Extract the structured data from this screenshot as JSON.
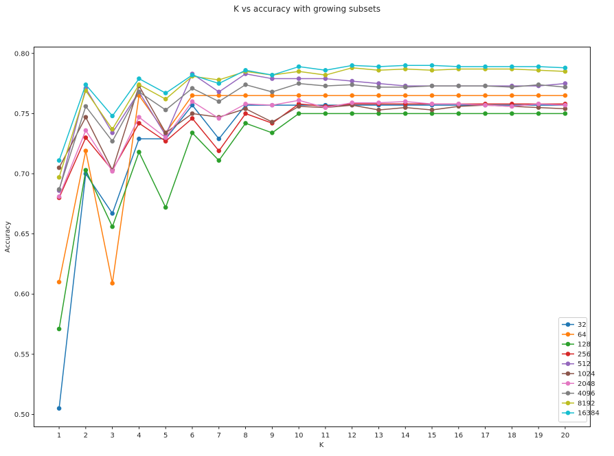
{
  "chart_data": {
    "type": "line",
    "title": "K vs accuracy with growing subsets",
    "xlabel": "K",
    "ylabel": "Accuracy",
    "x": [
      1,
      2,
      3,
      4,
      5,
      6,
      7,
      8,
      9,
      10,
      11,
      12,
      13,
      14,
      15,
      16,
      17,
      18,
      19,
      20
    ],
    "xticks": [
      "1",
      "2",
      "3",
      "4",
      "5",
      "6",
      "7",
      "8",
      "9",
      "10",
      "11",
      "12",
      "13",
      "14",
      "15",
      "16",
      "17",
      "18",
      "19",
      "20"
    ],
    "ylim": [
      0.49,
      0.805
    ],
    "yticks": [
      0.5,
      0.55,
      0.6,
      0.65,
      0.7,
      0.75,
      0.8
    ],
    "ytick_labels": [
      "0.50",
      "0.55",
      "0.60",
      "0.65",
      "0.70",
      "0.75",
      "0.80"
    ],
    "grid": false,
    "legend_position": "lower-right",
    "series": [
      {
        "name": "32",
        "color": "#1f77b4",
        "values": [
          0.505,
          0.7,
          0.667,
          0.729,
          0.729,
          0.757,
          0.729,
          0.757,
          0.757,
          0.757,
          0.757,
          0.757,
          0.757,
          0.757,
          0.757,
          0.757,
          0.757,
          0.757,
          0.757,
          0.757
        ]
      },
      {
        "name": "64",
        "color": "#ff7f0e",
        "values": [
          0.61,
          0.719,
          0.609,
          0.765,
          0.734,
          0.765,
          0.765,
          0.765,
          0.765,
          0.765,
          0.765,
          0.765,
          0.765,
          0.765,
          0.765,
          0.765,
          0.765,
          0.765,
          0.765,
          0.765
        ]
      },
      {
        "name": "128",
        "color": "#2ca02c",
        "values": [
          0.571,
          0.703,
          0.656,
          0.718,
          0.672,
          0.734,
          0.711,
          0.742,
          0.734,
          0.75,
          0.75,
          0.75,
          0.75,
          0.75,
          0.75,
          0.75,
          0.75,
          0.75,
          0.75,
          0.75
        ]
      },
      {
        "name": "256",
        "color": "#d62728",
        "values": [
          0.68,
          0.73,
          0.703,
          0.742,
          0.727,
          0.746,
          0.719,
          0.75,
          0.742,
          0.758,
          0.756,
          0.758,
          0.758,
          0.758,
          0.758,
          0.758,
          0.758,
          0.758,
          0.758,
          0.758
        ]
      },
      {
        "name": "512",
        "color": "#9467bd",
        "values": [
          0.686,
          0.771,
          0.734,
          0.768,
          0.732,
          0.783,
          0.768,
          0.783,
          0.779,
          0.779,
          0.779,
          0.777,
          0.775,
          0.773,
          0.773,
          0.773,
          0.773,
          0.773,
          0.773,
          0.775
        ]
      },
      {
        "name": "1024",
        "color": "#8c564b",
        "values": [
          0.705,
          0.747,
          0.703,
          0.773,
          0.734,
          0.75,
          0.747,
          0.754,
          0.743,
          0.756,
          0.755,
          0.757,
          0.753,
          0.755,
          0.753,
          0.756,
          0.757,
          0.756,
          0.755,
          0.754
        ]
      },
      {
        "name": "2048",
        "color": "#e377c2",
        "values": [
          0.681,
          0.736,
          0.702,
          0.747,
          0.73,
          0.76,
          0.746,
          0.758,
          0.757,
          0.761,
          0.755,
          0.759,
          0.759,
          0.76,
          0.758,
          0.758,
          0.757,
          0.756,
          0.758,
          0.757
        ]
      },
      {
        "name": "4096",
        "color": "#7f7f7f",
        "values": [
          0.687,
          0.756,
          0.727,
          0.768,
          0.753,
          0.771,
          0.76,
          0.774,
          0.768,
          0.775,
          0.773,
          0.774,
          0.772,
          0.772,
          0.773,
          0.773,
          0.773,
          0.772,
          0.774,
          0.772
        ]
      },
      {
        "name": "8192",
        "color": "#bcbd22",
        "values": [
          0.697,
          0.769,
          0.737,
          0.774,
          0.762,
          0.781,
          0.778,
          0.785,
          0.782,
          0.785,
          0.782,
          0.788,
          0.786,
          0.787,
          0.786,
          0.787,
          0.787,
          0.787,
          0.786,
          0.785
        ]
      },
      {
        "name": "16384",
        "color": "#17becf",
        "values": [
          0.711,
          0.774,
          0.748,
          0.779,
          0.767,
          0.782,
          0.775,
          0.786,
          0.782,
          0.789,
          0.786,
          0.79,
          0.789,
          0.79,
          0.79,
          0.789,
          0.789,
          0.789,
          0.789,
          0.788
        ]
      }
    ]
  }
}
